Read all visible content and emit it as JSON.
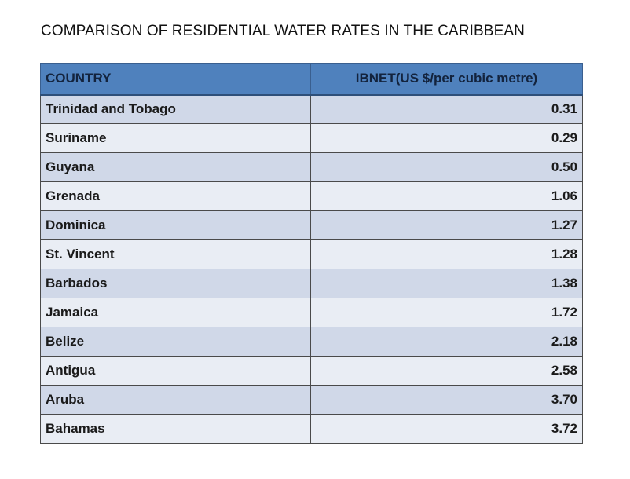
{
  "chart_data": {
    "type": "table",
    "title": "COMPARISON OF RESIDENTIAL WATER RATES IN THE CARIBBEAN",
    "columns": [
      "COUNTRY",
      "IBNET(US $/per  cubic metre)"
    ],
    "rows": [
      {
        "country": "Trinidad and Tobago",
        "rate": "0.31"
      },
      {
        "country": "Suriname",
        "rate": "0.29"
      },
      {
        "country": "Guyana",
        "rate": "0.50"
      },
      {
        "country": "Grenada",
        "rate": "1.06"
      },
      {
        "country": "Dominica",
        "rate": "1.27"
      },
      {
        "country": "St. Vincent",
        "rate": "1.28"
      },
      {
        "country": "Barbados",
        "rate": "1.38"
      },
      {
        "country": "Jamaica",
        "rate": "1.72"
      },
      {
        "country": "Belize",
        "rate": "2.18"
      },
      {
        "country": "Antigua",
        "rate": "2.58"
      },
      {
        "country": "Aruba",
        "rate": "3.70"
      },
      {
        "country": "Bahamas",
        "rate": "3.72"
      }
    ],
    "colors": {
      "header": "#4f81bd",
      "row_odd": "#d0d8e8",
      "row_even": "#e9edf4"
    }
  }
}
